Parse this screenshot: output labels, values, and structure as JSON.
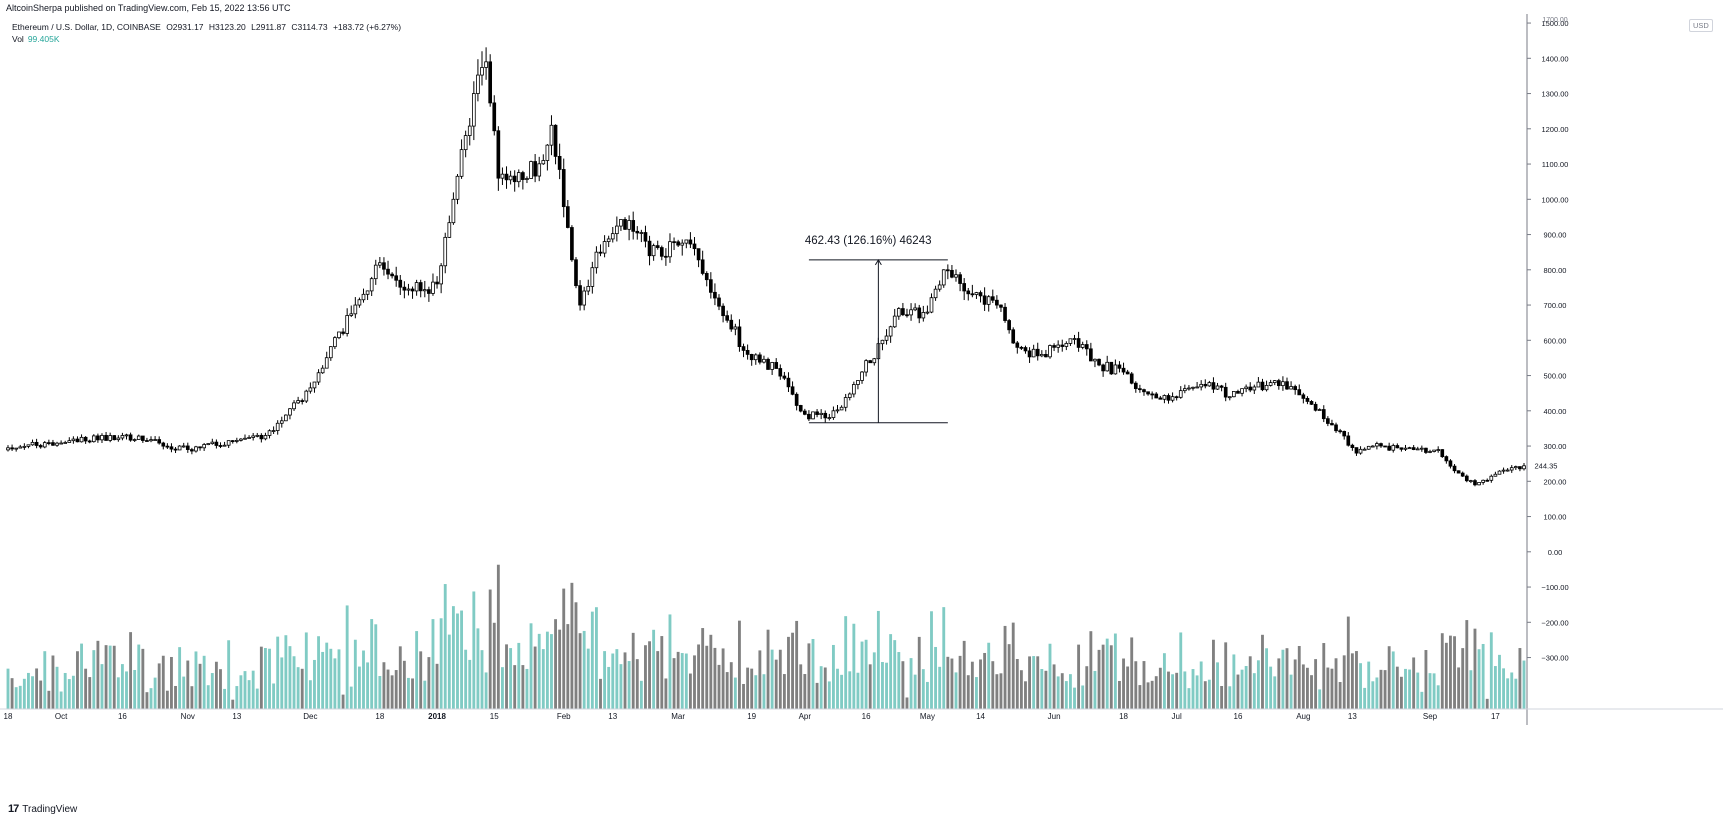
{
  "header": {
    "published": "AltcoinSherpa published on TradingView.com, Feb 15, 2022 13:56 UTC",
    "symbol": "Ethereum / U.S. Dollar, 1D, COINBASE",
    "open": "O2931.17",
    "high": "H3123.20",
    "low": "L2911.87",
    "close": "C3114.73",
    "change": "+183.72 (+6.27%)",
    "vol_label": "Vol",
    "vol_value": "99.405K"
  },
  "currency_badge": "USD",
  "brand": "TradingView",
  "measure_label": "462.43 (126.16%) 46243",
  "last_price_label": "244.35",
  "colors": {
    "up_volume": "#80cbc4",
    "down_volume": "#808080",
    "candle_up": "#ffffff",
    "candle_down": "#000000",
    "axis_text": "#131722"
  },
  "chart_data": {
    "type": "candlestick",
    "price_axis_ticks": [
      "1500.00",
      "1400.00",
      "1300.00",
      "1200.00",
      "1100.00",
      "1000.00",
      "900.00",
      "800.00",
      "700.00",
      "600.00",
      "500.00",
      "400.00",
      "300.00",
      "200.00",
      "100.00",
      "0.00",
      "−100.00",
      "−200.00",
      "−300.00"
    ],
    "price_axis_top_partial": "1700.00",
    "ylim": [
      -300,
      1500
    ],
    "time_axis_labels": [
      "18",
      "Oct",
      "16",
      "Nov",
      "13",
      "Dec",
      "18",
      "2018",
      "15",
      "Feb",
      "13",
      "Mar",
      "19",
      "Apr",
      "16",
      "May",
      "14",
      "Jun",
      "18",
      "Jul",
      "16",
      "Aug",
      "13",
      "Sep",
      "17"
    ],
    "x_range": [
      "2017-09-18",
      "2018-09-24"
    ],
    "key_price_points": [
      {
        "date": "2017-09-18",
        "close": 295
      },
      {
        "date": "2017-10-16",
        "close": 330
      },
      {
        "date": "2017-11-01",
        "close": 290
      },
      {
        "date": "2017-11-20",
        "close": 330
      },
      {
        "date": "2017-12-01",
        "close": 465
      },
      {
        "date": "2017-12-12",
        "close": 700
      },
      {
        "date": "2017-12-18",
        "close": 820
      },
      {
        "date": "2017-12-26",
        "close": 740
      },
      {
        "date": "2018-01-01",
        "close": 760
      },
      {
        "date": "2018-01-05",
        "close": 1000
      },
      {
        "date": "2018-01-10",
        "close": 1300
      },
      {
        "date": "2018-01-13",
        "close": 1390
      },
      {
        "date": "2018-01-16",
        "close": 1060
      },
      {
        "date": "2018-01-20",
        "close": 1050
      },
      {
        "date": "2018-01-27",
        "close": 1110
      },
      {
        "date": "2018-01-29",
        "close": 1210
      },
      {
        "date": "2018-02-02",
        "close": 920
      },
      {
        "date": "2018-02-05",
        "close": 700
      },
      {
        "date": "2018-02-09",
        "close": 850
      },
      {
        "date": "2018-02-17",
        "close": 940
      },
      {
        "date": "2018-02-22",
        "close": 840
      },
      {
        "date": "2018-03-01",
        "close": 870
      },
      {
        "date": "2018-03-05",
        "close": 860
      },
      {
        "date": "2018-03-10",
        "close": 720
      },
      {
        "date": "2018-03-18",
        "close": 560
      },
      {
        "date": "2018-03-25",
        "close": 520
      },
      {
        "date": "2018-04-01",
        "close": 390
      },
      {
        "date": "2018-04-06",
        "close": 380
      },
      {
        "date": "2018-04-10",
        "close": 410
      },
      {
        "date": "2018-04-15",
        "close": 510
      },
      {
        "date": "2018-04-20",
        "close": 600
      },
      {
        "date": "2018-04-24",
        "close": 690
      },
      {
        "date": "2018-05-01",
        "close": 680
      },
      {
        "date": "2018-05-05",
        "close": 800
      },
      {
        "date": "2018-05-10",
        "close": 740
      },
      {
        "date": "2018-05-18",
        "close": 700
      },
      {
        "date": "2018-05-23",
        "close": 580
      },
      {
        "date": "2018-05-29",
        "close": 560
      },
      {
        "date": "2018-06-06",
        "close": 605
      },
      {
        "date": "2018-06-12",
        "close": 530
      },
      {
        "date": "2018-06-18",
        "close": 510
      },
      {
        "date": "2018-06-22",
        "close": 460
      },
      {
        "date": "2018-06-29",
        "close": 430
      },
      {
        "date": "2018-07-09",
        "close": 480
      },
      {
        "date": "2018-07-14",
        "close": 440
      },
      {
        "date": "2018-07-24",
        "close": 480
      },
      {
        "date": "2018-07-30",
        "close": 460
      },
      {
        "date": "2018-08-08",
        "close": 360
      },
      {
        "date": "2018-08-14",
        "close": 280
      },
      {
        "date": "2018-08-18",
        "close": 300
      },
      {
        "date": "2018-08-28",
        "close": 290
      },
      {
        "date": "2018-09-03",
        "close": 290
      },
      {
        "date": "2018-09-07",
        "close": 230
      },
      {
        "date": "2018-09-12",
        "close": 190
      },
      {
        "date": "2018-09-17",
        "close": 220
      },
      {
        "date": "2018-09-24",
        "close": 244
      }
    ],
    "measure": {
      "from_date": "2018-04-02",
      "to_date": "2018-05-06",
      "low": 366,
      "high": 828
    }
  }
}
